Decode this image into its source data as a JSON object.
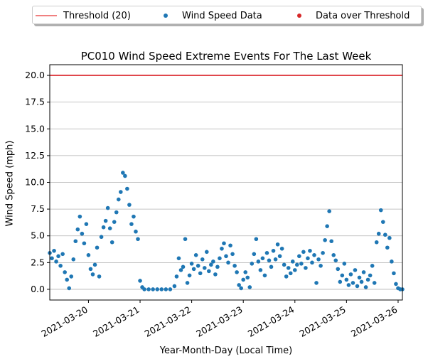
{
  "chart_data": {
    "type": "scatter",
    "title": "PC010 Wind Speed Extreme Events For The Last Week",
    "xlabel": "Year-Month-Day (Local Time)",
    "ylabel": "Wind Speed (mph)",
    "ylim": [
      -1,
      21
    ],
    "xlim": [
      "2021-03-19T06:00",
      "2021-03-26T02:00"
    ],
    "y_ticks": [
      "0.0",
      "2.5",
      "5.0",
      "7.5",
      "10.0",
      "12.5",
      "15.0",
      "17.5",
      "20.0"
    ],
    "x_ticks": [
      "2021-03-20",
      "2021-03-21",
      "2021-03-22",
      "2021-03-23",
      "2021-03-24",
      "2021-03-25",
      "2021-03-26"
    ],
    "grid": "horizontal",
    "legend_position": "top, above plot",
    "threshold": {
      "name": "Threshold (20)",
      "value": 20,
      "color": "#f08080"
    },
    "series": [
      {
        "name": "Wind Speed Data",
        "color": "#1f77b4",
        "points": [
          [
            "2021-03-19T06:00",
            3.4
          ],
          [
            "2021-03-19T07:00",
            2.9
          ],
          [
            "2021-03-19T08:00",
            3.6
          ],
          [
            "2021-03-19T09:00",
            2.6
          ],
          [
            "2021-03-19T10:00",
            3.1
          ],
          [
            "2021-03-19T11:00",
            2.2
          ],
          [
            "2021-03-19T12:00",
            3.3
          ],
          [
            "2021-03-19T13:00",
            1.6
          ],
          [
            "2021-03-19T14:00",
            0.9
          ],
          [
            "2021-03-19T15:00",
            0.1
          ],
          [
            "2021-03-19T16:00",
            1.2
          ],
          [
            "2021-03-19T17:00",
            2.8
          ],
          [
            "2021-03-19T18:00",
            4.5
          ],
          [
            "2021-03-19T19:00",
            5.6
          ],
          [
            "2021-03-19T20:00",
            6.8
          ],
          [
            "2021-03-19T21:00",
            5.2
          ],
          [
            "2021-03-19T22:00",
            4.3
          ],
          [
            "2021-03-19T23:00",
            6.1
          ],
          [
            "2021-03-20T00:00",
            3.2
          ],
          [
            "2021-03-20T01:00",
            1.9
          ],
          [
            "2021-03-20T02:00",
            1.4
          ],
          [
            "2021-03-20T03:00",
            2.3
          ],
          [
            "2021-03-20T04:00",
            3.9
          ],
          [
            "2021-03-20T05:00",
            1.2
          ],
          [
            "2021-03-20T06:00",
            4.9
          ],
          [
            "2021-03-20T07:00",
            5.8
          ],
          [
            "2021-03-20T08:00",
            6.4
          ],
          [
            "2021-03-20T09:00",
            7.6
          ],
          [
            "2021-03-20T10:00",
            5.7
          ],
          [
            "2021-03-20T11:00",
            4.4
          ],
          [
            "2021-03-20T12:00",
            6.3
          ],
          [
            "2021-03-20T13:00",
            7.2
          ],
          [
            "2021-03-20T14:00",
            8.4
          ],
          [
            "2021-03-20T15:00",
            9.1
          ],
          [
            "2021-03-20T16:00",
            10.9
          ],
          [
            "2021-03-20T17:00",
            10.6
          ],
          [
            "2021-03-20T18:00",
            9.4
          ],
          [
            "2021-03-20T19:00",
            7.9
          ],
          [
            "2021-03-20T20:00",
            6.1
          ],
          [
            "2021-03-20T21:00",
            6.8
          ],
          [
            "2021-03-20T22:00",
            5.4
          ],
          [
            "2021-03-20T23:00",
            4.7
          ],
          [
            "2021-03-21T00:00",
            0.8
          ],
          [
            "2021-03-21T01:00",
            0.2
          ],
          [
            "2021-03-21T02:00",
            0.0
          ],
          [
            "2021-03-21T04:00",
            0.0
          ],
          [
            "2021-03-21T06:00",
            0.0
          ],
          [
            "2021-03-21T08:00",
            0.0
          ],
          [
            "2021-03-21T10:00",
            0.0
          ],
          [
            "2021-03-21T12:00",
            0.0
          ],
          [
            "2021-03-21T14:00",
            0.0
          ],
          [
            "2021-03-21T16:00",
            0.3
          ],
          [
            "2021-03-21T17:00",
            1.2
          ],
          [
            "2021-03-21T18:00",
            2.9
          ],
          [
            "2021-03-21T19:00",
            1.8
          ],
          [
            "2021-03-21T20:00",
            2.1
          ],
          [
            "2021-03-21T21:00",
            4.7
          ],
          [
            "2021-03-21T22:00",
            0.6
          ],
          [
            "2021-03-21T23:00",
            1.3
          ],
          [
            "2021-03-22T00:00",
            2.4
          ],
          [
            "2021-03-22T01:00",
            1.9
          ],
          [
            "2021-03-22T02:00",
            3.2
          ],
          [
            "2021-03-22T03:00",
            2.2
          ],
          [
            "2021-03-22T04:00",
            1.5
          ],
          [
            "2021-03-22T05:00",
            2.8
          ],
          [
            "2021-03-22T06:00",
            2.0
          ],
          [
            "2021-03-22T07:00",
            3.5
          ],
          [
            "2021-03-22T08:00",
            1.7
          ],
          [
            "2021-03-22T09:00",
            2.3
          ],
          [
            "2021-03-22T10:00",
            2.6
          ],
          [
            "2021-03-22T11:00",
            1.4
          ],
          [
            "2021-03-22T12:00",
            2.1
          ],
          [
            "2021-03-22T13:00",
            2.9
          ],
          [
            "2021-03-22T14:00",
            3.8
          ],
          [
            "2021-03-22T15:00",
            4.3
          ],
          [
            "2021-03-22T16:00",
            3.1
          ],
          [
            "2021-03-22T17:00",
            2.5
          ],
          [
            "2021-03-22T18:00",
            4.1
          ],
          [
            "2021-03-22T19:00",
            3.3
          ],
          [
            "2021-03-22T20:00",
            2.2
          ],
          [
            "2021-03-22T21:00",
            1.6
          ],
          [
            "2021-03-22T22:00",
            0.4
          ],
          [
            "2021-03-22T23:00",
            0.1
          ],
          [
            "2021-03-23T00:00",
            0.9
          ],
          [
            "2021-03-23T01:00",
            1.6
          ],
          [
            "2021-03-23T02:00",
            1.1
          ],
          [
            "2021-03-23T03:00",
            0.2
          ],
          [
            "2021-03-23T04:00",
            2.4
          ],
          [
            "2021-03-23T05:00",
            3.3
          ],
          [
            "2021-03-23T06:00",
            4.7
          ],
          [
            "2021-03-23T07:00",
            2.6
          ],
          [
            "2021-03-23T08:00",
            1.8
          ],
          [
            "2021-03-23T09:00",
            2.9
          ],
          [
            "2021-03-23T10:00",
            1.3
          ],
          [
            "2021-03-23T11:00",
            3.4
          ],
          [
            "2021-03-23T12:00",
            2.7
          ],
          [
            "2021-03-23T13:00",
            2.1
          ],
          [
            "2021-03-23T14:00",
            3.6
          ],
          [
            "2021-03-23T15:00",
            2.8
          ],
          [
            "2021-03-23T16:00",
            4.2
          ],
          [
            "2021-03-23T17:00",
            3.1
          ],
          [
            "2021-03-23T18:00",
            3.8
          ],
          [
            "2021-03-23T19:00",
            2.3
          ],
          [
            "2021-03-23T20:00",
            1.2
          ],
          [
            "2021-03-23T21:00",
            2.0
          ],
          [
            "2021-03-23T22:00",
            1.5
          ],
          [
            "2021-03-23T23:00",
            2.6
          ],
          [
            "2021-03-24T00:00",
            1.8
          ],
          [
            "2021-03-24T01:00",
            2.3
          ],
          [
            "2021-03-24T02:00",
            3.1
          ],
          [
            "2021-03-24T03:00",
            2.4
          ],
          [
            "2021-03-24T04:00",
            3.5
          ],
          [
            "2021-03-24T05:00",
            2.0
          ],
          [
            "2021-03-24T06:00",
            2.9
          ],
          [
            "2021-03-24T07:00",
            3.6
          ],
          [
            "2021-03-24T08:00",
            2.5
          ],
          [
            "2021-03-24T09:00",
            3.2
          ],
          [
            "2021-03-24T10:00",
            0.6
          ],
          [
            "2021-03-24T11:00",
            2.8
          ],
          [
            "2021-03-24T12:00",
            2.2
          ],
          [
            "2021-03-24T13:00",
            3.4
          ],
          [
            "2021-03-24T14:00",
            4.6
          ],
          [
            "2021-03-24T15:00",
            5.9
          ],
          [
            "2021-03-24T16:00",
            7.3
          ],
          [
            "2021-03-24T17:00",
            4.5
          ],
          [
            "2021-03-24T18:00",
            3.2
          ],
          [
            "2021-03-24T19:00",
            2.7
          ],
          [
            "2021-03-24T20:00",
            1.9
          ],
          [
            "2021-03-24T21:00",
            0.7
          ],
          [
            "2021-03-24T22:00",
            1.3
          ],
          [
            "2021-03-24T23:00",
            2.4
          ],
          [
            "2021-03-25T00:00",
            0.9
          ],
          [
            "2021-03-25T01:00",
            0.4
          ],
          [
            "2021-03-25T02:00",
            1.4
          ],
          [
            "2021-03-25T03:00",
            0.6
          ],
          [
            "2021-03-25T04:00",
            1.8
          ],
          [
            "2021-03-25T05:00",
            0.3
          ],
          [
            "2021-03-25T06:00",
            1.1
          ],
          [
            "2021-03-25T07:00",
            0.7
          ],
          [
            "2021-03-25T08:00",
            1.6
          ],
          [
            "2021-03-25T09:00",
            0.2
          ],
          [
            "2021-03-25T10:00",
            0.9
          ],
          [
            "2021-03-25T11:00",
            1.3
          ],
          [
            "2021-03-25T12:00",
            2.2
          ],
          [
            "2021-03-25T13:00",
            0.6
          ],
          [
            "2021-03-25T14:00",
            4.4
          ],
          [
            "2021-03-25T15:00",
            5.2
          ],
          [
            "2021-03-25T16:00",
            7.4
          ],
          [
            "2021-03-25T17:00",
            6.3
          ],
          [
            "2021-03-25T18:00",
            5.1
          ],
          [
            "2021-03-25T19:00",
            3.9
          ],
          [
            "2021-03-25T20:00",
            4.8
          ],
          [
            "2021-03-25T21:00",
            2.6
          ],
          [
            "2021-03-25T22:00",
            1.5
          ],
          [
            "2021-03-25T23:00",
            0.5
          ],
          [
            "2021-03-26T00:00",
            0.1
          ],
          [
            "2021-03-26T01:00",
            0.0
          ],
          [
            "2021-03-26T02:00",
            0.0
          ]
        ]
      },
      {
        "name": "Data over Threshold",
        "color": "#d62728",
        "points": []
      }
    ]
  }
}
